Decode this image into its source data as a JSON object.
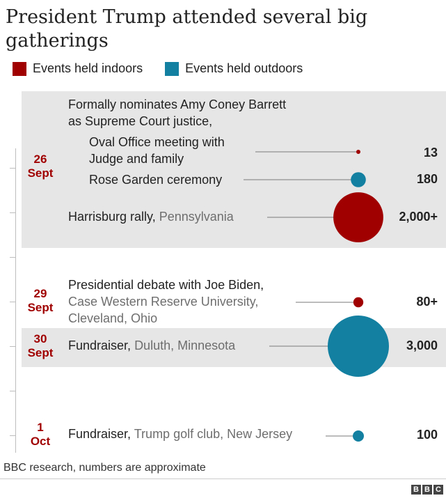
{
  "title": "President Trump attended several big gatherings",
  "legend": [
    {
      "label": "Events held indoors",
      "color": "#a10000"
    },
    {
      "label": "Events held outdoors",
      "color": "#1380a1"
    }
  ],
  "dates": {
    "d1": {
      "day": "26",
      "month": "Sept"
    },
    "d2": {
      "day": "29",
      "month": "Sept"
    },
    "d3": {
      "day": "30",
      "month": "Sept"
    },
    "d4": {
      "day": "1",
      "month": "Oct"
    }
  },
  "group_heading": {
    "line1": "Formally nominates Amy Coney Barrett",
    "line2": "as Supreme Court justice,"
  },
  "events": [
    {
      "date": "26 Sept",
      "line1": "Oval Office meeting with",
      "line2": "Judge and family",
      "value": 13,
      "value_label": "13",
      "setting": "indoors"
    },
    {
      "date": "26 Sept",
      "line1": "Rose Garden ceremony",
      "value": 180,
      "value_label": "180",
      "setting": "outdoors"
    },
    {
      "date": "26 Sept",
      "name": "Harrisburg rally,",
      "place": "Pennsylvania",
      "value": 2000,
      "value_label": "2,000+",
      "setting": "indoors"
    },
    {
      "date": "29 Sept",
      "line1": "Presidential debate with Joe Biden,",
      "line2": "Case Western Reserve University,",
      "line3": "Cleveland, Ohio",
      "value": 80,
      "value_label": "80+",
      "setting": "indoors"
    },
    {
      "date": "30 Sept",
      "name": "Fundraiser,",
      "place": "Duluth, Minnesota",
      "value": 3000,
      "value_label": "3,000",
      "setting": "outdoors"
    },
    {
      "date": "1 Oct",
      "name": "Fundraiser,",
      "place": "Trump golf club, New Jersey",
      "value": 100,
      "value_label": "100",
      "setting": "outdoors"
    }
  ],
  "footnote": "BBC research, numbers are approximate",
  "brand": [
    "B",
    "B",
    "C"
  ],
  "chart_data": {
    "type": "scatter",
    "title": "President Trump attended several big gatherings",
    "encoding": "bubble area proportional to attendance",
    "categories": [
      "Oval Office meeting with Judge and family",
      "Rose Garden ceremony",
      "Harrisburg rally, Pennsylvania",
      "Presidential debate with Joe Biden, Case Western Reserve University, Cleveland, Ohio",
      "Fundraiser, Duluth, Minnesota",
      "Fundraiser, Trump golf club, New Jersey"
    ],
    "dates": [
      "26 Sept",
      "26 Sept",
      "26 Sept",
      "29 Sept",
      "30 Sept",
      "1 Oct"
    ],
    "values": [
      13,
      180,
      2000,
      80,
      3000,
      100
    ],
    "settings": [
      "indoors",
      "outdoors",
      "indoors",
      "indoors",
      "outdoors",
      "outdoors"
    ],
    "series": [
      {
        "name": "Events held indoors",
        "color": "#a10000"
      },
      {
        "name": "Events held outdoors",
        "color": "#1380a1"
      }
    ],
    "legend": "top-left",
    "grid": false
  }
}
